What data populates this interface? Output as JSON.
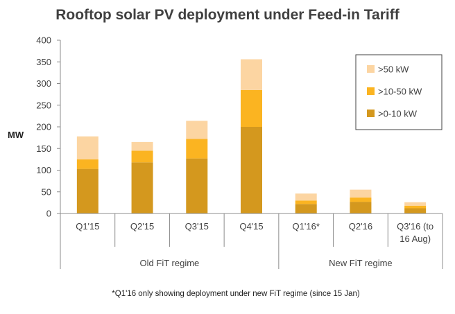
{
  "chart_data": {
    "type": "bar",
    "stacked": true,
    "title": "Rooftop solar PV deployment under Feed-in Tariff",
    "ylabel": "MW",
    "xlabel": "",
    "ylim": [
      0,
      400
    ],
    "yticks": [
      0,
      50,
      100,
      150,
      200,
      250,
      300,
      350,
      400
    ],
    "grid": false,
    "legend_position": "top-right",
    "categories": [
      "Q1'15",
      "Q2'15",
      "Q3'15",
      "Q4'15",
      "Q1'16*",
      "Q2'16",
      "Q3'16 (to 16 Aug)"
    ],
    "category_lines": [
      [
        "Q1'15"
      ],
      [
        "Q2'15"
      ],
      [
        "Q3'15"
      ],
      [
        "Q4'15"
      ],
      [
        "Q1'16*"
      ],
      [
        "Q2'16"
      ],
      [
        "Q3'16 (to",
        "16 Aug)"
      ]
    ],
    "groups": [
      {
        "label": "Old FiT regime",
        "categories": [
          "Q1'15",
          "Q2'15",
          "Q3'15",
          "Q4'15"
        ]
      },
      {
        "label": "New FiT regime",
        "categories": [
          "Q1'16*",
          "Q2'16",
          "Q3'16 (to 16 Aug)"
        ]
      }
    ],
    "series": [
      {
        "name": ">0-10 kW",
        "color": "#D4981E",
        "values": [
          103,
          118,
          127,
          200,
          22,
          27,
          12
        ]
      },
      {
        "name": ">10-50 kW",
        "color": "#FBB421",
        "values": [
          22,
          27,
          45,
          85,
          8,
          10,
          6
        ]
      },
      {
        "name": ">50 kW",
        "color": "#FCD5A2",
        "values": [
          53,
          20,
          42,
          71,
          16,
          18,
          8
        ]
      }
    ],
    "legend_order": [
      ">50 kW",
      ">10-50 kW",
      ">0-10 kW"
    ]
  },
  "footnote": "*Q1'16 only showing deployment  under new FiT regime (since 15 Jan)"
}
